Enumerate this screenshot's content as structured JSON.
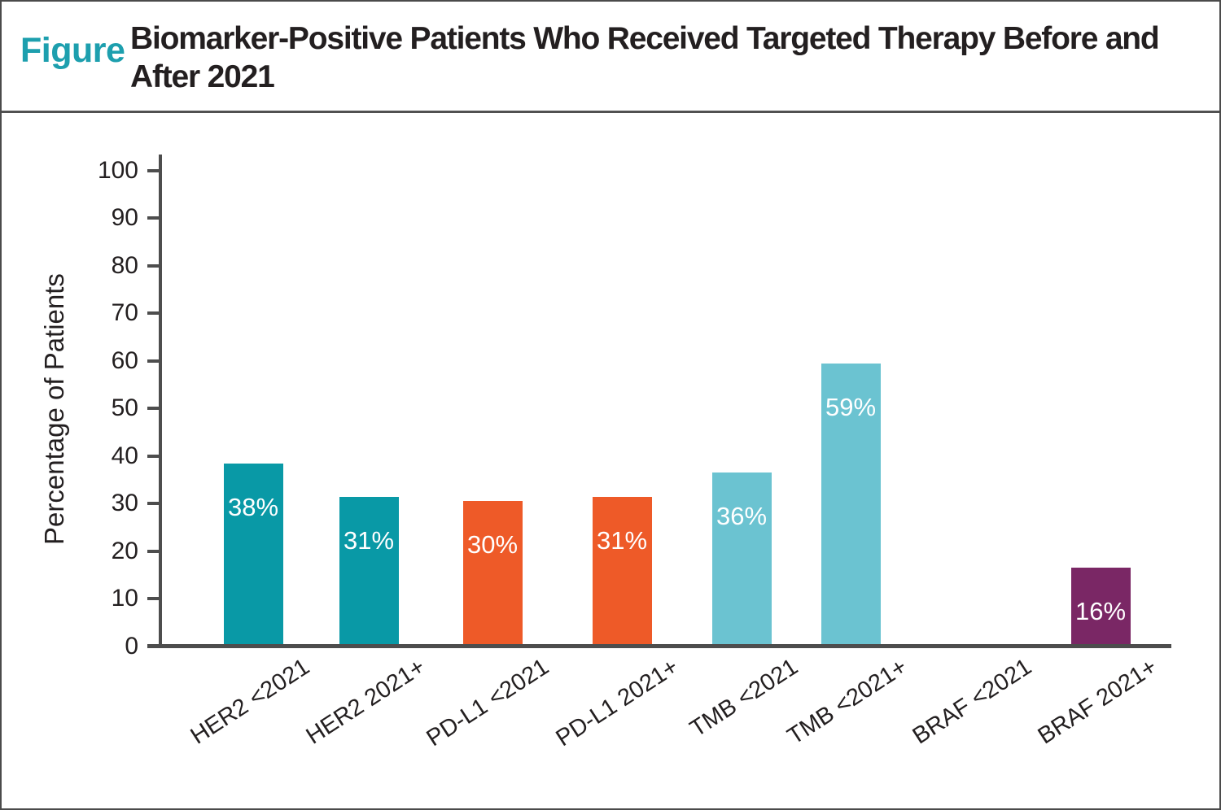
{
  "header": {
    "figure_label": "Figure",
    "title_line1": "Biomarker-Positive Patients Who Received Targeted Therapy Before and",
    "title_line2": "After 2021"
  },
  "chart_data": {
    "type": "bar",
    "title": "Biomarker-Positive Patients Who Received Targeted Therapy Before and After 2021",
    "categories": [
      "HER2 <2021",
      "HER2 2021+",
      "PD-L1 <2021",
      "PD-L1 2021+",
      "TMB <2021",
      "TMB <2021+",
      "BRAF <2021",
      "BRAF 2021+"
    ],
    "values": [
      38,
      31,
      30,
      31,
      36,
      59,
      0,
      16
    ],
    "value_labels": [
      "38%",
      "31%",
      "30%",
      "31%",
      "36%",
      "59%",
      "",
      "16%"
    ],
    "bar_colors": [
      "#0999a6",
      "#0999a6",
      "#ee5a28",
      "#ee5a28",
      "#6bc3d1",
      "#6bc3d1",
      "#7a2765",
      "#7a2765"
    ],
    "xlabel": "",
    "ylabel": "Percentage of Patients",
    "ylim": [
      0,
      100
    ],
    "yticks": [
      0,
      10,
      20,
      30,
      40,
      50,
      60,
      70,
      80,
      90,
      100
    ],
    "grid": false,
    "legend": false,
    "value_labels_inside_bars": true
  },
  "colors": {
    "teal_bar": "#0999a6",
    "orange_bar": "#ee5a28",
    "light_blue_bar": "#6bc3d1",
    "purple_bar": "#7a2765",
    "figure_label_teal": "#1d9fae",
    "axis_gray": "#4d4d4d",
    "text_dark": "#231f20"
  }
}
